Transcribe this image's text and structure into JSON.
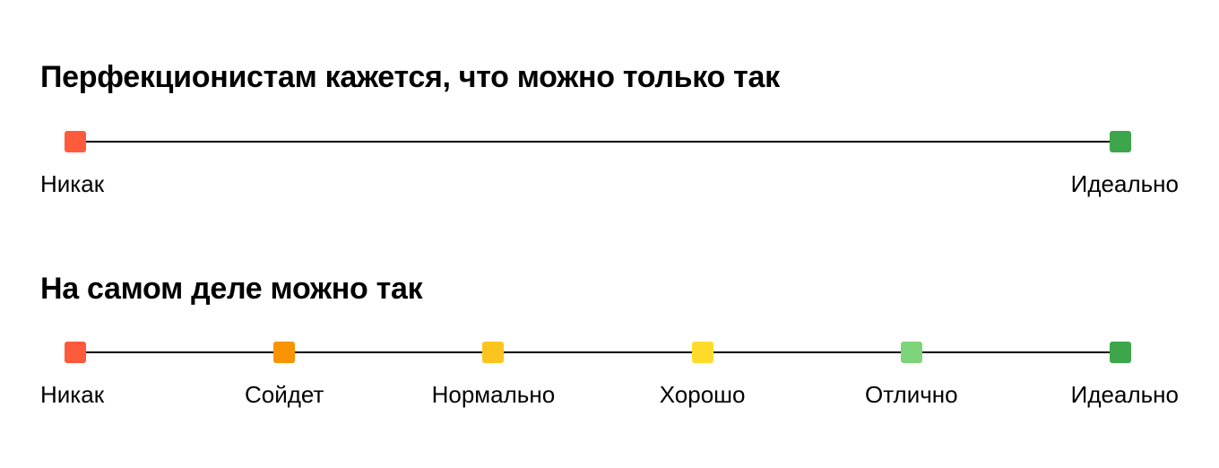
{
  "scale1": {
    "title": "Перфекционистам кажется, что можно только так",
    "points": [
      {
        "label": "Никак",
        "color": "#FF5A3C"
      },
      {
        "label": "Идеально",
        "color": "#3DA54A"
      }
    ]
  },
  "scale2": {
    "title": "На самом деле можно так",
    "points": [
      {
        "label": "Никак",
        "color": "#FF5A3C"
      },
      {
        "label": "Сойдет",
        "color": "#F79400"
      },
      {
        "label": "Нормально",
        "color": "#FCC41E"
      },
      {
        "label": "Хорошо",
        "color": "#FFDC2C"
      },
      {
        "label": "Отлично",
        "color": "#7ED47A"
      },
      {
        "label": "Идеально",
        "color": "#3DA54A"
      }
    ]
  }
}
